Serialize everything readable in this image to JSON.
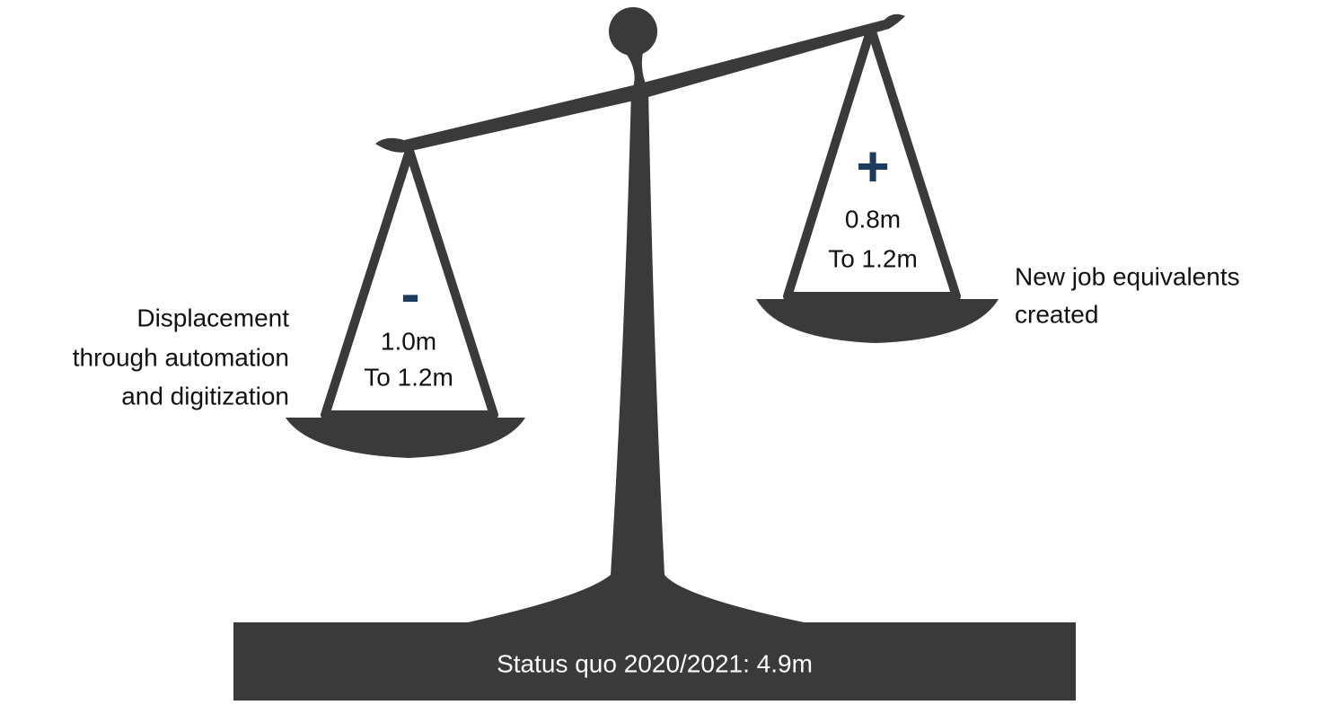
{
  "left_pan": {
    "sign": "-",
    "value_lines": [
      "1.0m",
      "To 1.2m"
    ],
    "label_lines": [
      "Displacement",
      "through automation",
      "and digitization"
    ]
  },
  "right_pan": {
    "sign": "+",
    "value_lines": [
      "0.8m",
      "To 1.2m"
    ],
    "label_lines": [
      "New job equivalents",
      "created"
    ]
  },
  "base": {
    "text": "Status quo 2020/2021: 4.9m"
  }
}
